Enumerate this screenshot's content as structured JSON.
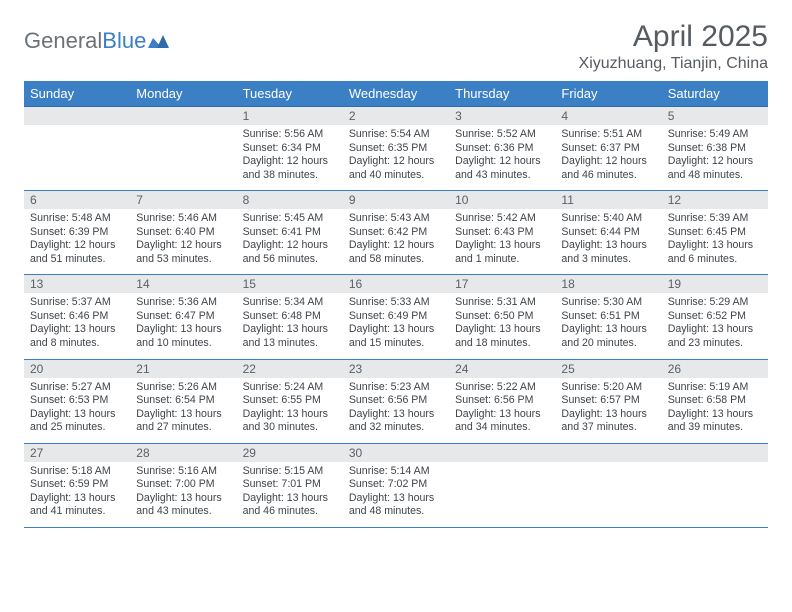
{
  "logo": {
    "general": "General",
    "blue": "Blue"
  },
  "title": "April 2025",
  "location": "Xiyuzhuang, Tianjin, China",
  "colors": {
    "header_bg": "#3b7fc4",
    "header_text": "#ffffff",
    "daynum_bg": "#e6e8ea",
    "daynum_text": "#5b6167",
    "body_text": "#3f444a",
    "rule": "#3b7fc4"
  },
  "weekdays": [
    "Sunday",
    "Monday",
    "Tuesday",
    "Wednesday",
    "Thursday",
    "Friday",
    "Saturday"
  ],
  "weeks": [
    [
      null,
      null,
      {
        "n": "1",
        "sr": "Sunrise: 5:56 AM",
        "ss": "Sunset: 6:34 PM",
        "dl": "Daylight: 12 hours and 38 minutes."
      },
      {
        "n": "2",
        "sr": "Sunrise: 5:54 AM",
        "ss": "Sunset: 6:35 PM",
        "dl": "Daylight: 12 hours and 40 minutes."
      },
      {
        "n": "3",
        "sr": "Sunrise: 5:52 AM",
        "ss": "Sunset: 6:36 PM",
        "dl": "Daylight: 12 hours and 43 minutes."
      },
      {
        "n": "4",
        "sr": "Sunrise: 5:51 AM",
        "ss": "Sunset: 6:37 PM",
        "dl": "Daylight: 12 hours and 46 minutes."
      },
      {
        "n": "5",
        "sr": "Sunrise: 5:49 AM",
        "ss": "Sunset: 6:38 PM",
        "dl": "Daylight: 12 hours and 48 minutes."
      }
    ],
    [
      {
        "n": "6",
        "sr": "Sunrise: 5:48 AM",
        "ss": "Sunset: 6:39 PM",
        "dl": "Daylight: 12 hours and 51 minutes."
      },
      {
        "n": "7",
        "sr": "Sunrise: 5:46 AM",
        "ss": "Sunset: 6:40 PM",
        "dl": "Daylight: 12 hours and 53 minutes."
      },
      {
        "n": "8",
        "sr": "Sunrise: 5:45 AM",
        "ss": "Sunset: 6:41 PM",
        "dl": "Daylight: 12 hours and 56 minutes."
      },
      {
        "n": "9",
        "sr": "Sunrise: 5:43 AM",
        "ss": "Sunset: 6:42 PM",
        "dl": "Daylight: 12 hours and 58 minutes."
      },
      {
        "n": "10",
        "sr": "Sunrise: 5:42 AM",
        "ss": "Sunset: 6:43 PM",
        "dl": "Daylight: 13 hours and 1 minute."
      },
      {
        "n": "11",
        "sr": "Sunrise: 5:40 AM",
        "ss": "Sunset: 6:44 PM",
        "dl": "Daylight: 13 hours and 3 minutes."
      },
      {
        "n": "12",
        "sr": "Sunrise: 5:39 AM",
        "ss": "Sunset: 6:45 PM",
        "dl": "Daylight: 13 hours and 6 minutes."
      }
    ],
    [
      {
        "n": "13",
        "sr": "Sunrise: 5:37 AM",
        "ss": "Sunset: 6:46 PM",
        "dl": "Daylight: 13 hours and 8 minutes."
      },
      {
        "n": "14",
        "sr": "Sunrise: 5:36 AM",
        "ss": "Sunset: 6:47 PM",
        "dl": "Daylight: 13 hours and 10 minutes."
      },
      {
        "n": "15",
        "sr": "Sunrise: 5:34 AM",
        "ss": "Sunset: 6:48 PM",
        "dl": "Daylight: 13 hours and 13 minutes."
      },
      {
        "n": "16",
        "sr": "Sunrise: 5:33 AM",
        "ss": "Sunset: 6:49 PM",
        "dl": "Daylight: 13 hours and 15 minutes."
      },
      {
        "n": "17",
        "sr": "Sunrise: 5:31 AM",
        "ss": "Sunset: 6:50 PM",
        "dl": "Daylight: 13 hours and 18 minutes."
      },
      {
        "n": "18",
        "sr": "Sunrise: 5:30 AM",
        "ss": "Sunset: 6:51 PM",
        "dl": "Daylight: 13 hours and 20 minutes."
      },
      {
        "n": "19",
        "sr": "Sunrise: 5:29 AM",
        "ss": "Sunset: 6:52 PM",
        "dl": "Daylight: 13 hours and 23 minutes."
      }
    ],
    [
      {
        "n": "20",
        "sr": "Sunrise: 5:27 AM",
        "ss": "Sunset: 6:53 PM",
        "dl": "Daylight: 13 hours and 25 minutes."
      },
      {
        "n": "21",
        "sr": "Sunrise: 5:26 AM",
        "ss": "Sunset: 6:54 PM",
        "dl": "Daylight: 13 hours and 27 minutes."
      },
      {
        "n": "22",
        "sr": "Sunrise: 5:24 AM",
        "ss": "Sunset: 6:55 PM",
        "dl": "Daylight: 13 hours and 30 minutes."
      },
      {
        "n": "23",
        "sr": "Sunrise: 5:23 AM",
        "ss": "Sunset: 6:56 PM",
        "dl": "Daylight: 13 hours and 32 minutes."
      },
      {
        "n": "24",
        "sr": "Sunrise: 5:22 AM",
        "ss": "Sunset: 6:56 PM",
        "dl": "Daylight: 13 hours and 34 minutes."
      },
      {
        "n": "25",
        "sr": "Sunrise: 5:20 AM",
        "ss": "Sunset: 6:57 PM",
        "dl": "Daylight: 13 hours and 37 minutes."
      },
      {
        "n": "26",
        "sr": "Sunrise: 5:19 AM",
        "ss": "Sunset: 6:58 PM",
        "dl": "Daylight: 13 hours and 39 minutes."
      }
    ],
    [
      {
        "n": "27",
        "sr": "Sunrise: 5:18 AM",
        "ss": "Sunset: 6:59 PM",
        "dl": "Daylight: 13 hours and 41 minutes."
      },
      {
        "n": "28",
        "sr": "Sunrise: 5:16 AM",
        "ss": "Sunset: 7:00 PM",
        "dl": "Daylight: 13 hours and 43 minutes."
      },
      {
        "n": "29",
        "sr": "Sunrise: 5:15 AM",
        "ss": "Sunset: 7:01 PM",
        "dl": "Daylight: 13 hours and 46 minutes."
      },
      {
        "n": "30",
        "sr": "Sunrise: 5:14 AM",
        "ss": "Sunset: 7:02 PM",
        "dl": "Daylight: 13 hours and 48 minutes."
      },
      null,
      null,
      null
    ]
  ]
}
